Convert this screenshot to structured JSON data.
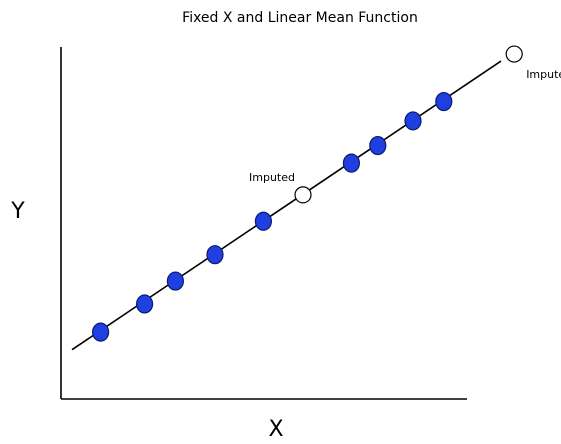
{
  "chart_data": {
    "type": "scatter",
    "title": "Fixed X and Linear Mean Function",
    "xlabel": "X",
    "ylabel": "Y",
    "xlim": [
      0,
      10
    ],
    "ylim": [
      0,
      10
    ],
    "grid": false,
    "ticks": false,
    "colors": {
      "observed_fill": "#1f3fe0",
      "observed_stroke": "#0a1a6e",
      "imputed_fill": "#ffffff",
      "imputed_stroke": "#000000",
      "line": "#000000",
      "axis": "#000000"
    },
    "mean_line": {
      "x": [
        0.25,
        10.0
      ],
      "y": [
        1.4,
        9.6
      ]
    },
    "observed": [
      {
        "x": 0.9,
        "y": 1.9
      },
      {
        "x": 1.9,
        "y": 2.7
      },
      {
        "x": 2.6,
        "y": 3.35
      },
      {
        "x": 3.5,
        "y": 4.1
      },
      {
        "x": 4.6,
        "y": 5.05
      },
      {
        "x": 6.6,
        "y": 6.7
      },
      {
        "x": 7.2,
        "y": 7.2
      },
      {
        "x": 8.0,
        "y": 7.9
      },
      {
        "x": 8.7,
        "y": 8.45
      }
    ],
    "imputed": [
      {
        "x": 5.5,
        "y": 5.8,
        "label": "Imputed",
        "label_side": "upper-left"
      },
      {
        "x": 10.3,
        "y": 9.8,
        "label": "Imputed",
        "label_side": "lower-right"
      }
    ]
  }
}
